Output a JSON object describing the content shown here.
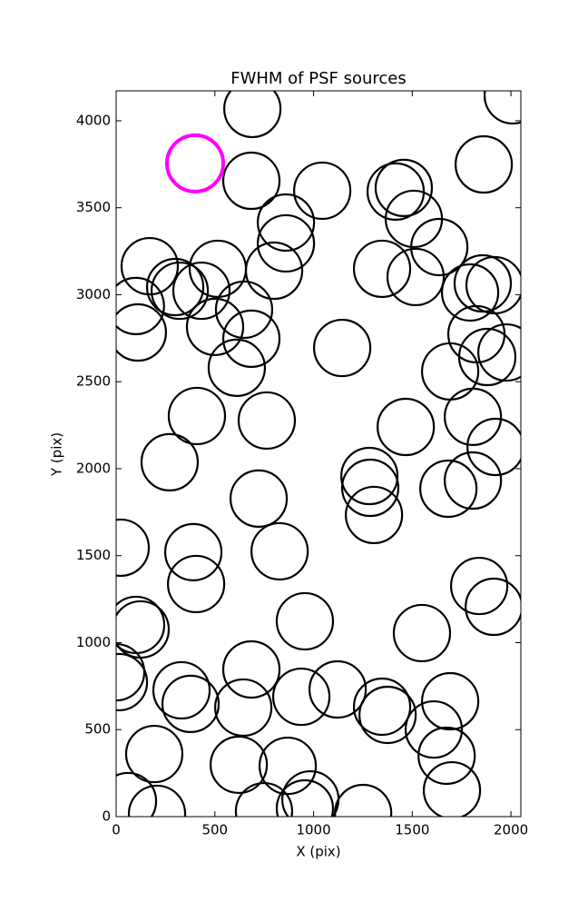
{
  "chart_data": {
    "type": "scatter",
    "title": "FWHM of PSF sources",
    "x_label": "X (pix)",
    "y_label": "Y (pix)",
    "xlim": [
      0,
      2050
    ],
    "ylim": [
      0,
      4172
    ],
    "xticks": [
      0,
      500,
      1000,
      1500,
      2000
    ],
    "yticks": [
      0,
      500,
      1000,
      1500,
      2000,
      2500,
      3000,
      3500,
      4000
    ],
    "series": [
      {
        "color": "#000000",
        "x": [
          690,
          685,
          1044,
          2009,
          1862,
          1416,
          1457,
          1508,
          860,
          860,
          1637,
          170,
          100,
          110,
          299,
          322,
          432,
          515,
          800,
          1347,
          1517,
          1793,
          1857,
          1917,
          501,
          648,
          685,
          611,
          1145,
          1825,
          1880,
          1977,
          1692,
          409,
          763,
          1467,
          1807,
          1922,
          271,
          1283,
          1287,
          1306,
          1683,
          1807,
          722,
          23,
          391,
          828,
          405,
          1839,
          1913,
          101,
          124,
          956,
          1549,
          0,
          14,
          331,
          377,
          685,
          644,
          938,
          1122,
          1347,
          1375,
          1692,
          1609,
          1674,
          1701,
          193,
          621,
          869,
          60,
          207,
          749,
          984,
          956,
          1251
        ],
        "y": [
          4068,
          3655,
          3598,
          4146,
          3749,
          3593,
          3614,
          3436,
          3415,
          3295,
          3274,
          3164,
          2935,
          2783,
          3044,
          3023,
          3023,
          3149,
          3138,
          3149,
          3102,
          3013,
          3065,
          3055,
          2815,
          2914,
          2747,
          2580,
          2694,
          2773,
          2642,
          2668,
          2559,
          2303,
          2277,
          2240,
          2298,
          2125,
          2037,
          1958,
          1890,
          1734,
          1885,
          1932,
          1828,
          1546,
          1520,
          1525,
          1337,
          1326,
          1206,
          1102,
          1076,
          1123,
          1055,
          830,
          773,
          726,
          648,
          846,
          627,
          689,
          731,
          632,
          585,
          663,
          501,
          350,
          151,
          360,
          298,
          292,
          89,
          16,
          31,
          99,
          47,
          21
        ]
      },
      {
        "color": "#ff00ff",
        "x": [
          400
        ],
        "y": [
          3755
        ]
      }
    ]
  }
}
